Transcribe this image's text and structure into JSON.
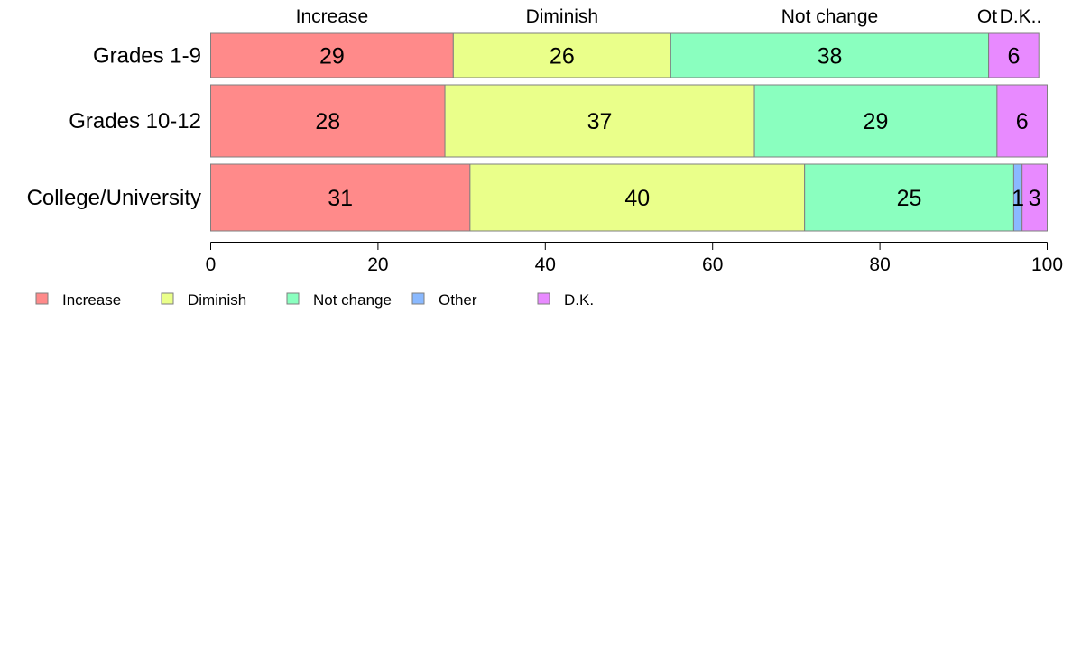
{
  "chart_data": {
    "type": "bar",
    "orientation": "horizontal",
    "stacked": true,
    "categories": [
      "Grades 1-9",
      "Grades 10-12",
      "College/University"
    ],
    "column_headers": [
      "Increase",
      "Diminish",
      "Not change",
      "Ot",
      "D.K.."
    ],
    "series": [
      {
        "name": "Increase",
        "color": "#FF8A8A",
        "values": [
          29,
          28,
          31
        ],
        "labels": [
          "29",
          "28",
          "31"
        ]
      },
      {
        "name": "Diminish",
        "color": "#EAFF8A",
        "values": [
          26,
          37,
          40
        ],
        "labels": [
          "26",
          "37",
          "40"
        ]
      },
      {
        "name": "Not change",
        "color": "#8AFFBF",
        "values": [
          38,
          29,
          25
        ],
        "labels": [
          "38",
          "29",
          "25"
        ]
      },
      {
        "name": "Other",
        "color": "#8AB9FF",
        "values": [
          0,
          0,
          1
        ],
        "labels": [
          "",
          "",
          "1"
        ]
      },
      {
        "name": "D.K.",
        "color": "#E88AFF",
        "values": [
          6,
          6,
          3
        ],
        "labels": [
          "6",
          "6",
          "3"
        ]
      }
    ],
    "xlim": [
      0,
      100
    ],
    "xticks": [
      0,
      20,
      40,
      60,
      80,
      100
    ],
    "xtick_labels": [
      "0",
      "20",
      "40",
      "60",
      "80",
      "100"
    ],
    "grid": false,
    "legend_position": "bottom-left",
    "legend": [
      "Increase",
      "Diminish",
      "Not change",
      "Other",
      "D.K."
    ]
  }
}
